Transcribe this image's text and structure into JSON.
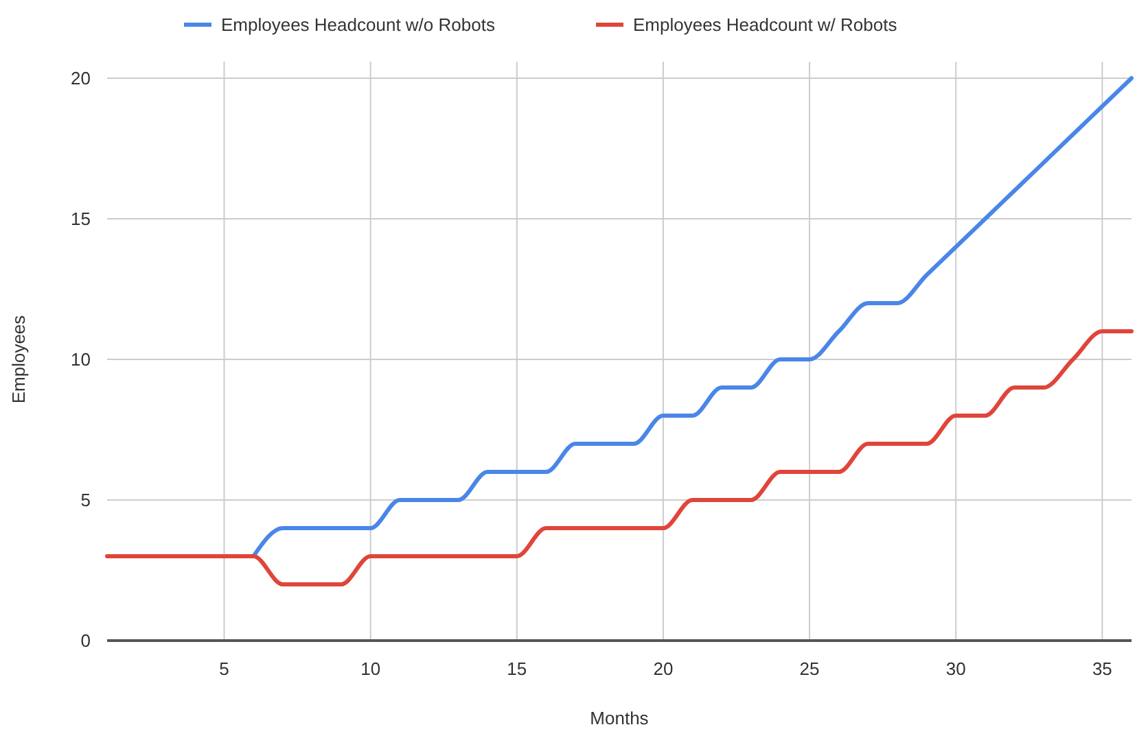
{
  "chart_data": {
    "type": "line",
    "xlabel": "Months",
    "ylabel": "Employees",
    "x": [
      1,
      2,
      3,
      4,
      5,
      6,
      7,
      8,
      9,
      10,
      11,
      12,
      13,
      14,
      15,
      16,
      17,
      18,
      19,
      20,
      21,
      22,
      23,
      24,
      25,
      26,
      27,
      28,
      29,
      30,
      31,
      32,
      33,
      34,
      35,
      36
    ],
    "series": [
      {
        "name": "Employees Headcount w/o Robots",
        "color": "#4a86e8",
        "values": [
          null,
          null,
          null,
          null,
          null,
          3,
          4,
          4,
          4,
          4,
          5,
          5,
          5,
          6,
          6,
          6,
          7,
          7,
          7,
          8,
          8,
          9,
          9,
          10,
          10,
          11,
          12,
          12,
          13,
          14,
          15,
          16,
          17,
          18,
          19,
          20
        ]
      },
      {
        "name": "Employees Headcount w/ Robots",
        "color": "#e0453a",
        "values": [
          3,
          3,
          3,
          3,
          3,
          3,
          2,
          2,
          2,
          3,
          3,
          3,
          3,
          3,
          3,
          4,
          4,
          4,
          4,
          4,
          5,
          5,
          5,
          6,
          6,
          6,
          7,
          7,
          7,
          8,
          8,
          9,
          9,
          10,
          11,
          11
        ]
      }
    ],
    "xlim": [
      1,
      36
    ],
    "xticks": [
      5,
      10,
      15,
      20,
      25,
      30,
      35
    ],
    "ylim": [
      0,
      20
    ],
    "yticks": [
      0,
      5,
      10,
      15,
      20
    ],
    "grid": true,
    "legend": "top",
    "marker": "none",
    "line_style": "solid"
  }
}
